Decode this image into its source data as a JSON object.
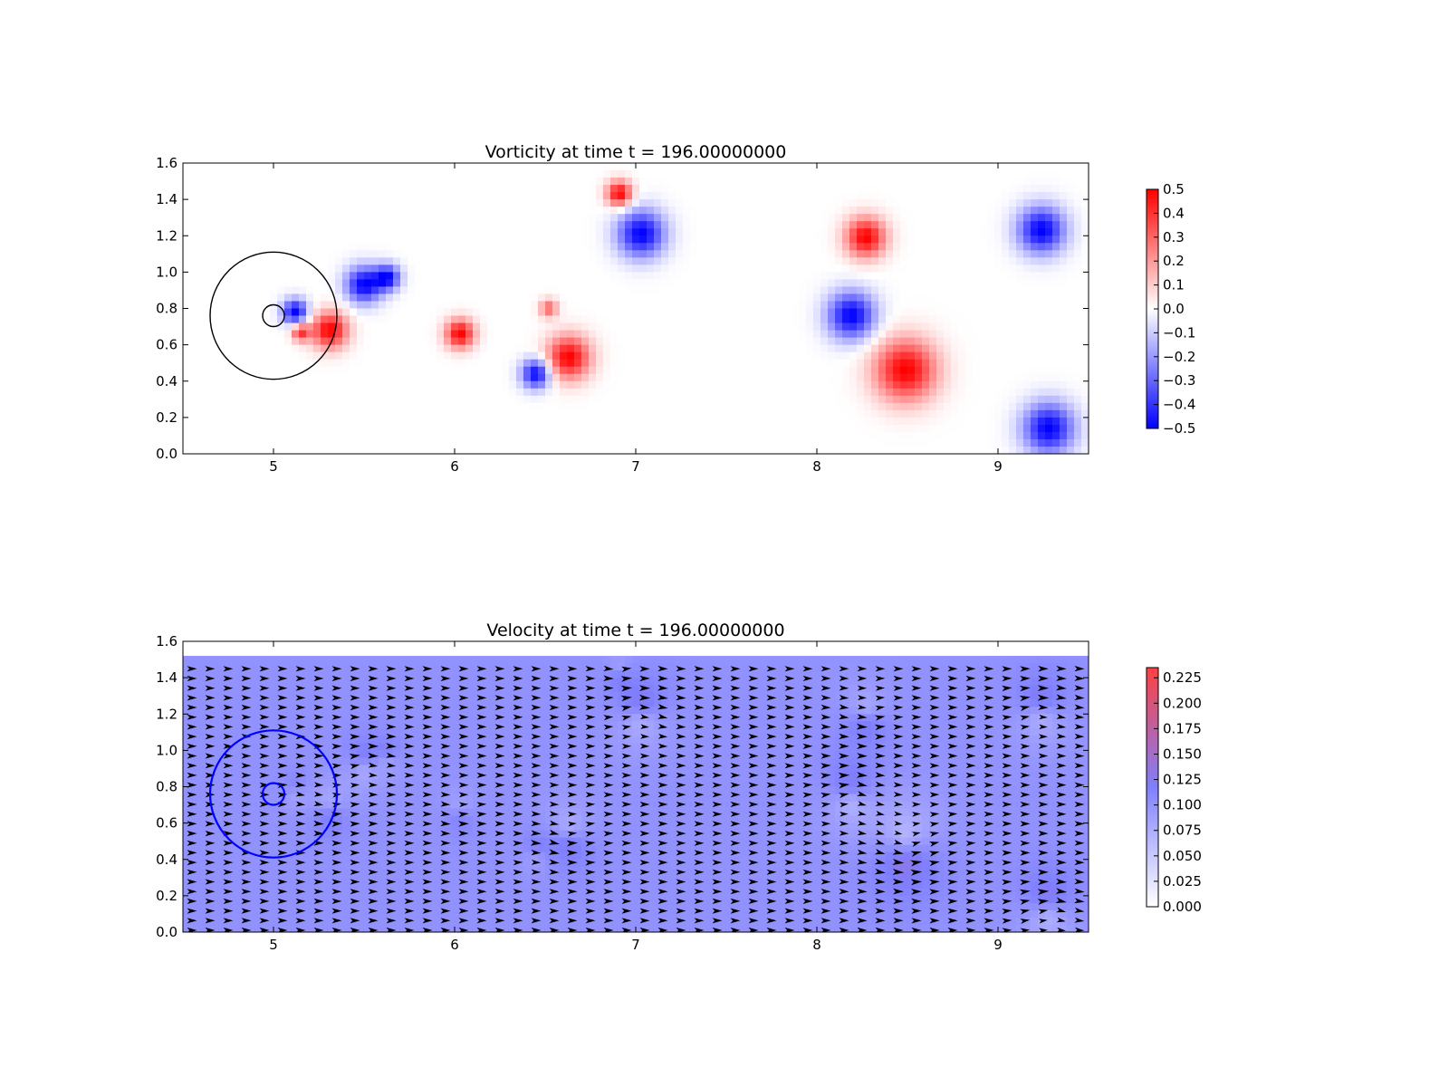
{
  "chart_data": [
    {
      "type": "heatmap",
      "title": "Vorticity at time t =   196.00000000",
      "xlabel": "",
      "ylabel": "",
      "xlim": [
        4.5,
        9.5
      ],
      "ylim": [
        0.0,
        1.6
      ],
      "xticks": [
        "5",
        "6",
        "7",
        "8",
        "9"
      ],
      "yticks": [
        "0.0",
        "0.2",
        "0.4",
        "0.6",
        "0.8",
        "1.0",
        "1.2",
        "1.4",
        "1.6"
      ],
      "colormap": {
        "low": "#0000ff",
        "mid": "#ffffff",
        "high": "#ff0000"
      },
      "vlim": [
        -0.5,
        0.5
      ],
      "colorbar_ticks": [
        "−0.5",
        "−0.4",
        "−0.3",
        "−0.2",
        "−0.1",
        "0.0",
        "0.1",
        "0.2",
        "0.3",
        "0.4",
        "0.5"
      ],
      "colorbar_values": [
        -0.5,
        -0.4,
        -0.3,
        -0.2,
        -0.1,
        0.0,
        0.1,
        0.2,
        0.3,
        0.4,
        0.5
      ],
      "circles": [
        {
          "cx": 5.0,
          "cy": 0.76,
          "r": 0.35,
          "color": "#000000"
        },
        {
          "cx": 5.0,
          "cy": 0.76,
          "r": 0.06,
          "color": "#000000"
        }
      ],
      "vortices": [
        {
          "x": 5.12,
          "y": 0.78,
          "r": 0.07,
          "w": -0.5
        },
        {
          "x": 5.31,
          "y": 0.68,
          "r": 0.1,
          "w": 0.5
        },
        {
          "x": 5.15,
          "y": 0.67,
          "r": 0.05,
          "w": 0.4
        },
        {
          "x": 5.5,
          "y": 0.93,
          "r": 0.1,
          "w": -0.5
        },
        {
          "x": 5.63,
          "y": 0.97,
          "r": 0.07,
          "w": -0.45
        },
        {
          "x": 6.03,
          "y": 0.66,
          "r": 0.08,
          "w": 0.5
        },
        {
          "x": 6.45,
          "y": 0.44,
          "r": 0.08,
          "w": -0.5
        },
        {
          "x": 6.63,
          "y": 0.53,
          "r": 0.12,
          "w": 0.5
        },
        {
          "x": 6.52,
          "y": 0.8,
          "r": 0.05,
          "w": 0.3
        },
        {
          "x": 6.91,
          "y": 1.43,
          "r": 0.07,
          "w": 0.5
        },
        {
          "x": 7.03,
          "y": 1.21,
          "r": 0.13,
          "w": -0.5
        },
        {
          "x": 8.27,
          "y": 1.19,
          "r": 0.11,
          "w": 0.5
        },
        {
          "x": 8.19,
          "y": 0.76,
          "r": 0.13,
          "w": -0.5
        },
        {
          "x": 8.49,
          "y": 0.46,
          "r": 0.17,
          "w": 0.5
        },
        {
          "x": 9.24,
          "y": 1.23,
          "r": 0.13,
          "w": -0.5
        },
        {
          "x": 9.28,
          "y": 0.14,
          "r": 0.14,
          "w": -0.5
        }
      ]
    },
    {
      "type": "heatmap",
      "title": "Velocity at time t =   196.00000000",
      "xlabel": "",
      "ylabel": "",
      "xlim": [
        4.5,
        9.5
      ],
      "ylim": [
        0.0,
        1.6
      ],
      "xticks": [
        "5",
        "6",
        "7",
        "8",
        "9"
      ],
      "yticks": [
        "0.0",
        "0.2",
        "0.4",
        "0.6",
        "0.8",
        "1.0",
        "1.2",
        "1.4",
        "1.6"
      ],
      "colormap": {
        "low": "#ffffff",
        "mid": "#7f7fff",
        "high": "#ff4040"
      },
      "vlim": [
        0.0,
        0.235
      ],
      "colorbar_ticks": [
        "0.000",
        "0.025",
        "0.050",
        "0.075",
        "0.100",
        "0.125",
        "0.150",
        "0.175",
        "0.200",
        "0.225"
      ],
      "colorbar_values": [
        0.0,
        0.025,
        0.05,
        0.075,
        0.1,
        0.125,
        0.15,
        0.175,
        0.2,
        0.225
      ],
      "field_ymax": 1.52,
      "base_speed": 0.1,
      "arrow_color": "#000000",
      "circles": [
        {
          "cx": 5.0,
          "cy": 0.76,
          "r": 0.35,
          "color": "#0000ff"
        },
        {
          "cx": 5.0,
          "cy": 0.76,
          "r": 0.06,
          "color": "#0000ff"
        }
      ],
      "vortices": [
        {
          "x": 5.12,
          "y": 0.78,
          "r": 0.07,
          "w": -0.5
        },
        {
          "x": 5.31,
          "y": 0.68,
          "r": 0.1,
          "w": 0.5
        },
        {
          "x": 5.5,
          "y": 0.93,
          "r": 0.1,
          "w": -0.5
        },
        {
          "x": 5.63,
          "y": 0.97,
          "r": 0.07,
          "w": -0.45
        },
        {
          "x": 6.03,
          "y": 0.66,
          "r": 0.08,
          "w": 0.5
        },
        {
          "x": 6.45,
          "y": 0.44,
          "r": 0.08,
          "w": -0.5
        },
        {
          "x": 6.63,
          "y": 0.53,
          "r": 0.12,
          "w": 0.5
        },
        {
          "x": 6.91,
          "y": 1.43,
          "r": 0.07,
          "w": 0.5
        },
        {
          "x": 7.03,
          "y": 1.21,
          "r": 0.13,
          "w": -0.5
        },
        {
          "x": 8.27,
          "y": 1.19,
          "r": 0.11,
          "w": 0.5
        },
        {
          "x": 8.19,
          "y": 0.76,
          "r": 0.13,
          "w": -0.5
        },
        {
          "x": 8.49,
          "y": 0.46,
          "r": 0.17,
          "w": 0.5
        },
        {
          "x": 9.24,
          "y": 1.23,
          "r": 0.13,
          "w": -0.5
        },
        {
          "x": 9.28,
          "y": 0.14,
          "r": 0.14,
          "w": -0.5
        }
      ]
    }
  ]
}
